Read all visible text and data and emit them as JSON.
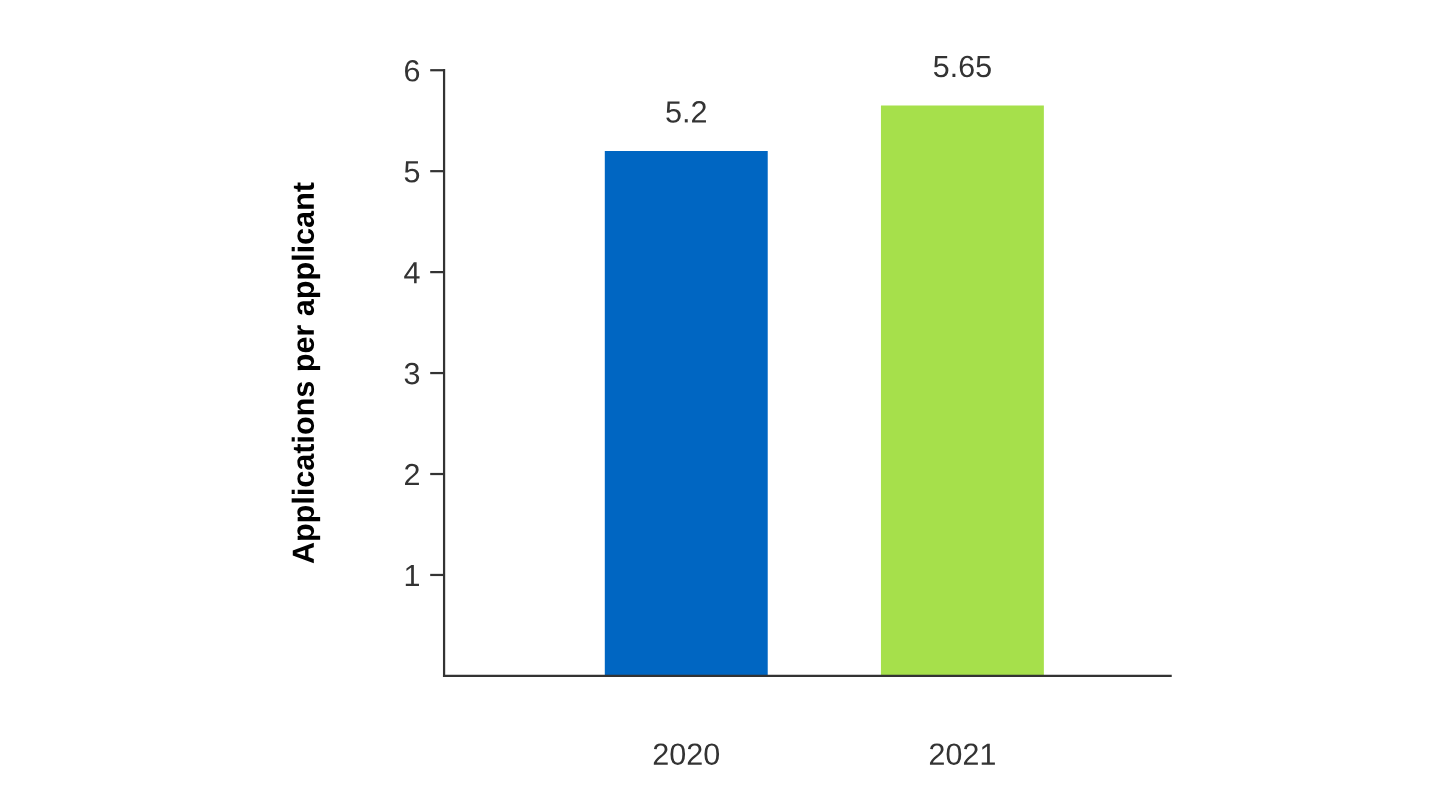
{
  "chart_data": {
    "type": "bar",
    "ylabel": "Applications per applicant",
    "categories": [
      "2020",
      "2021"
    ],
    "values": [
      5.2,
      5.65
    ],
    "colors": [
      "#0066c2",
      "#a6e04b"
    ],
    "ylim": [
      0,
      6
    ],
    "yticks": [
      1,
      2,
      3,
      4,
      5,
      6
    ],
    "data_labels": true,
    "grid": false,
    "legend": false
  }
}
